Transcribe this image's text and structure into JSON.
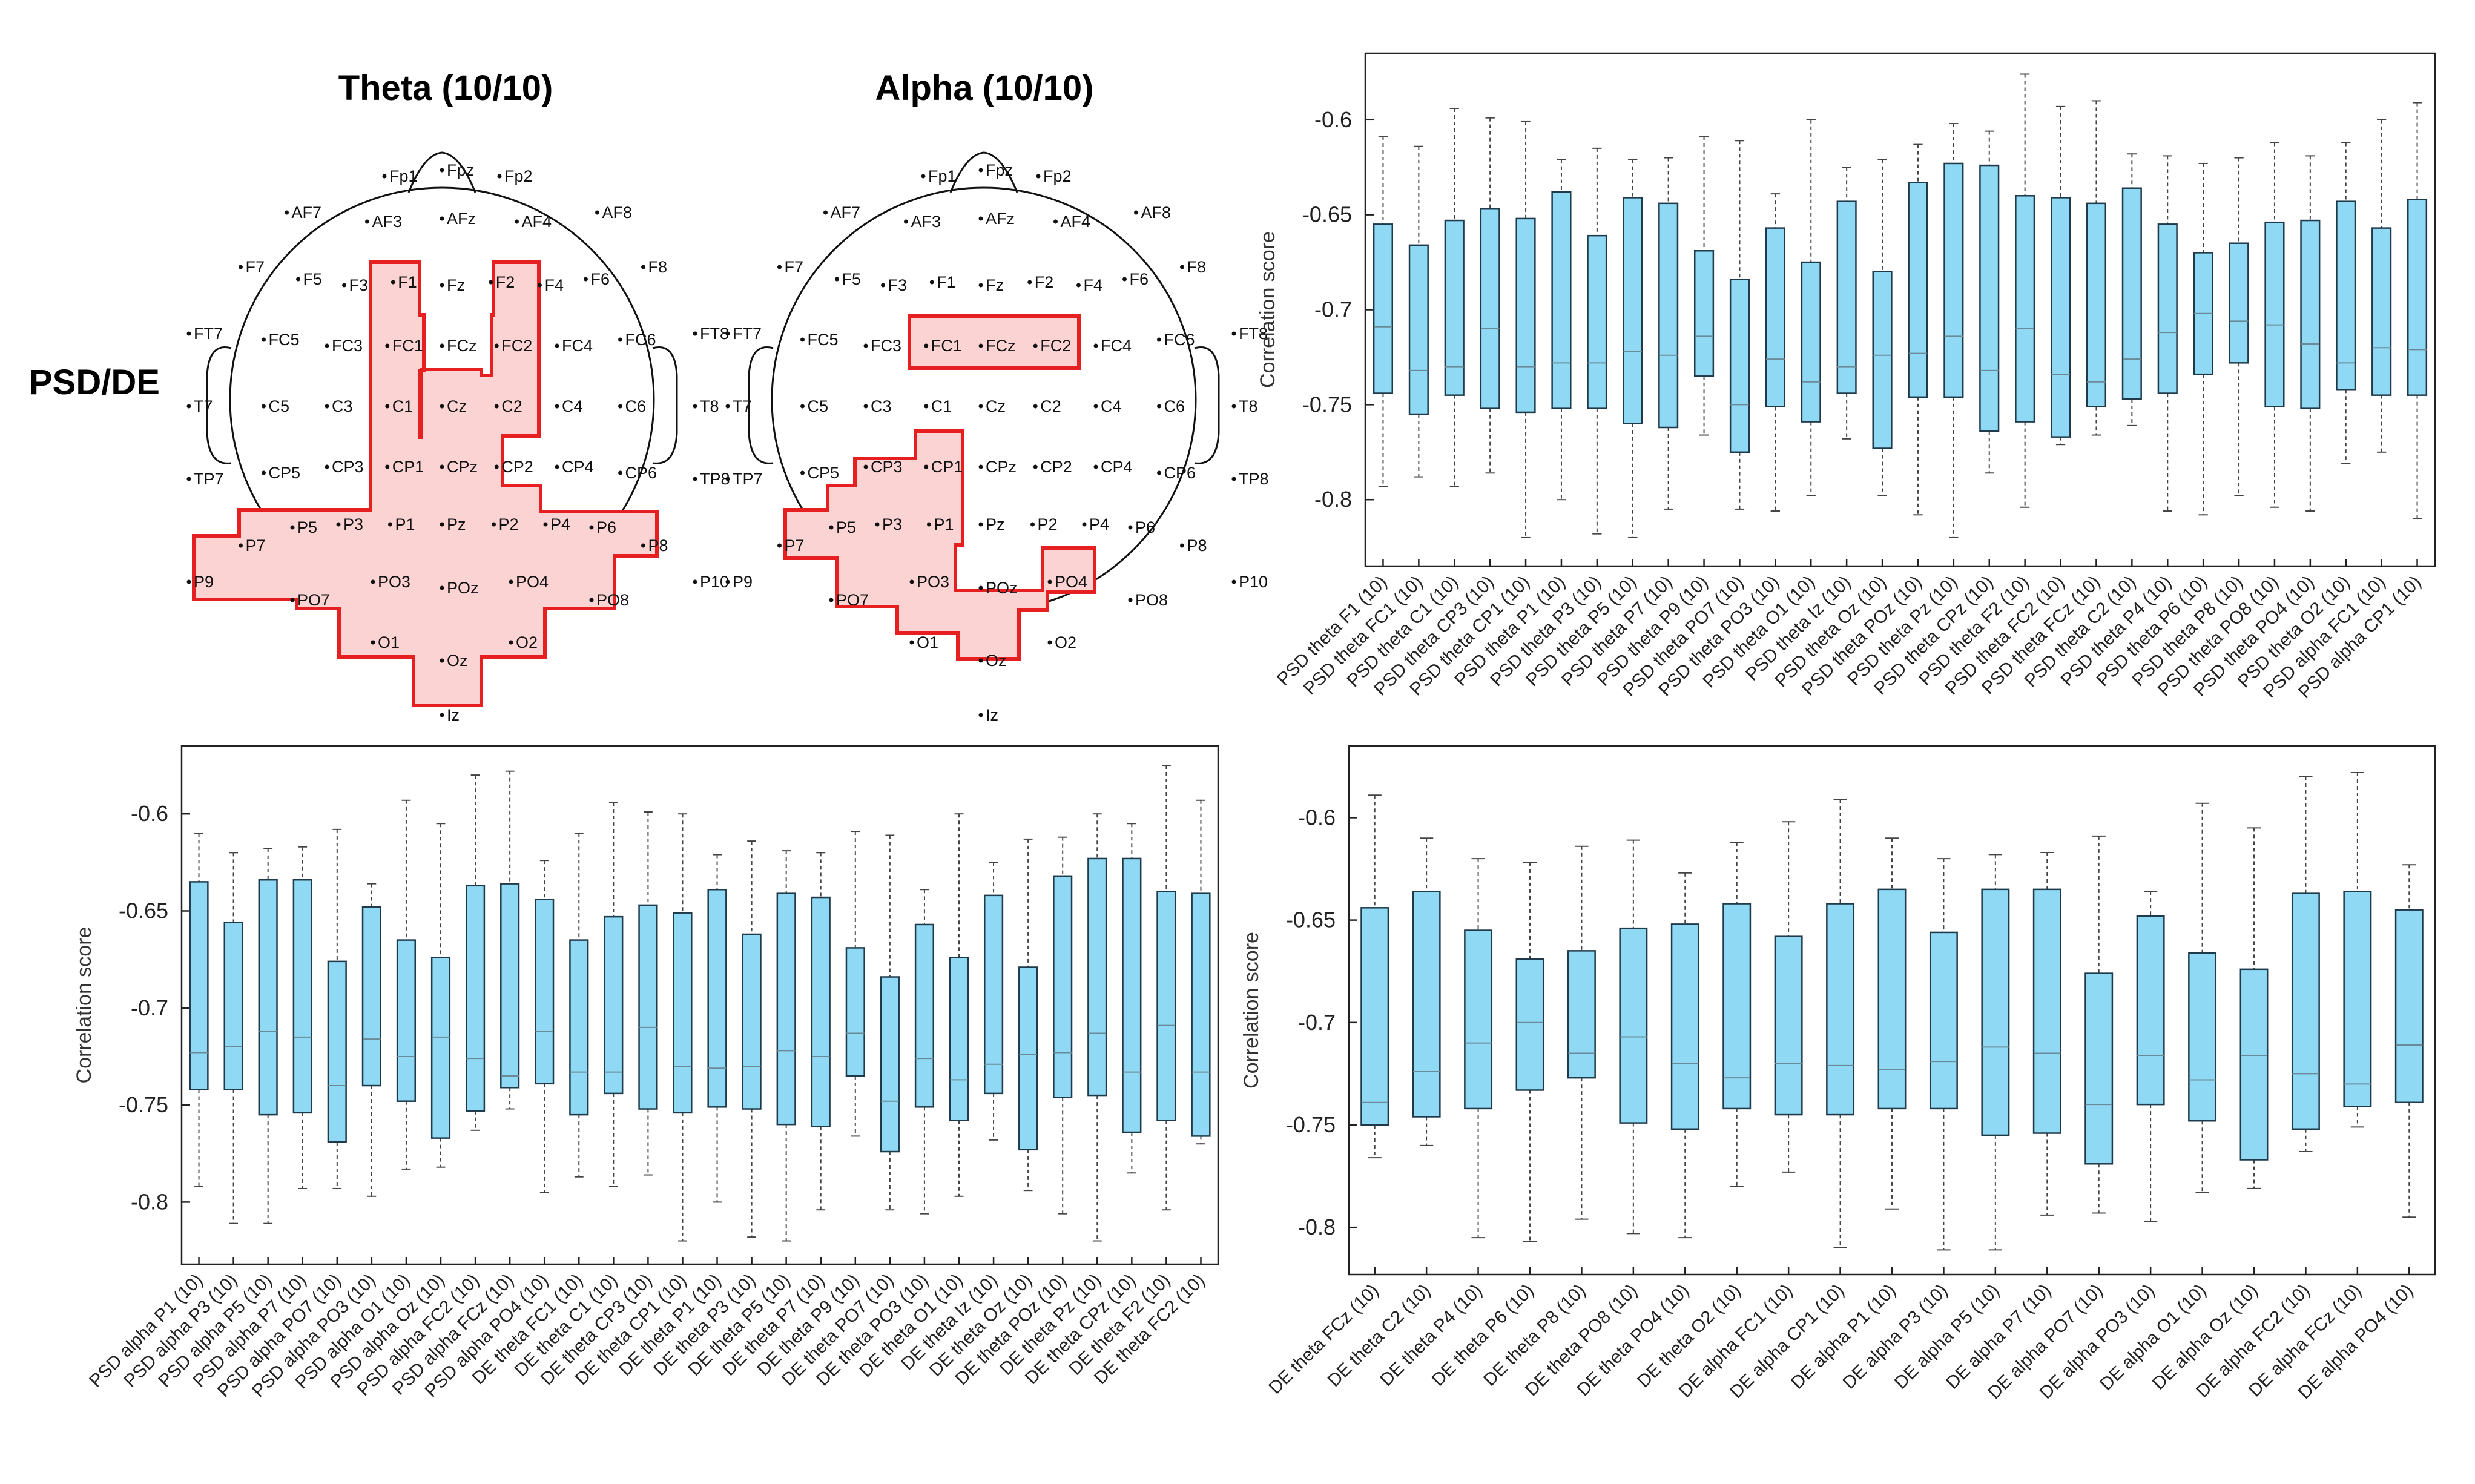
{
  "topomaps": {
    "theta_title": "Theta (10/10)",
    "alpha_title": "Alpha (10/10)",
    "row_label": "PSD/DE",
    "region_color": "#e62020",
    "region_fill": "#fcd3d3",
    "electrodes": [
      {
        "n": "Fpz",
        "c": 0,
        "r": 0
      },
      {
        "n": "Fp1",
        "c": -1,
        "r": 0.1
      },
      {
        "n": "Fp2",
        "c": 1,
        "r": 0.1
      },
      {
        "n": "AF7",
        "c": -2.7,
        "r": 0.7
      },
      {
        "n": "AF3",
        "c": -1.3,
        "r": 0.85
      },
      {
        "n": "AFz",
        "c": 0,
        "r": 0.8
      },
      {
        "n": "AF4",
        "c": 1.3,
        "r": 0.85
      },
      {
        "n": "AF8",
        "c": 2.7,
        "r": 0.7
      },
      {
        "n": "F7",
        "c": -3.5,
        "r": 1.6
      },
      {
        "n": "F5",
        "c": -2.5,
        "r": 1.8
      },
      {
        "n": "F3",
        "c": -1.7,
        "r": 1.9
      },
      {
        "n": "F1",
        "c": -0.85,
        "r": 1.85
      },
      {
        "n": "Fz",
        "c": 0,
        "r": 1.9
      },
      {
        "n": "F2",
        "c": 0.85,
        "r": 1.85
      },
      {
        "n": "F4",
        "c": 1.7,
        "r": 1.9
      },
      {
        "n": "F6",
        "c": 2.5,
        "r": 1.8
      },
      {
        "n": "F8",
        "c": 3.5,
        "r": 1.6
      },
      {
        "n": "FT7",
        "c": -4.4,
        "r": 2.7
      },
      {
        "n": "FC5",
        "c": -3.1,
        "r": 2.8
      },
      {
        "n": "FC3",
        "c": -2.0,
        "r": 2.9
      },
      {
        "n": "FC1",
        "c": -0.95,
        "r": 2.9
      },
      {
        "n": "FCz",
        "c": 0,
        "r": 2.9
      },
      {
        "n": "FC2",
        "c": 0.95,
        "r": 2.9
      },
      {
        "n": "FC4",
        "c": 2.0,
        "r": 2.9
      },
      {
        "n": "FC6",
        "c": 3.1,
        "r": 2.8
      },
      {
        "n": "FT8",
        "c": 4.4,
        "r": 2.7
      },
      {
        "n": "T7",
        "c": -4.4,
        "r": 3.9
      },
      {
        "n": "C5",
        "c": -3.1,
        "r": 3.9
      },
      {
        "n": "C3",
        "c": -2.0,
        "r": 3.9
      },
      {
        "n": "C1",
        "c": -0.95,
        "r": 3.9
      },
      {
        "n": "Cz",
        "c": 0,
        "r": 3.9
      },
      {
        "n": "C2",
        "c": 0.95,
        "r": 3.9
      },
      {
        "n": "C4",
        "c": 2.0,
        "r": 3.9
      },
      {
        "n": "C6",
        "c": 3.1,
        "r": 3.9
      },
      {
        "n": "T8",
        "c": 4.4,
        "r": 3.9
      },
      {
        "n": "TP7",
        "c": -4.4,
        "r": 5.1
      },
      {
        "n": "CP5",
        "c": -3.1,
        "r": 5.0
      },
      {
        "n": "CP3",
        "c": -2.0,
        "r": 4.9
      },
      {
        "n": "CP1",
        "c": -0.95,
        "r": 4.9
      },
      {
        "n": "CPz",
        "c": 0,
        "r": 4.9
      },
      {
        "n": "CP2",
        "c": 0.95,
        "r": 4.9
      },
      {
        "n": "CP4",
        "c": 2.0,
        "r": 4.9
      },
      {
        "n": "CP6",
        "c": 3.1,
        "r": 5.0
      },
      {
        "n": "TP8",
        "c": 4.4,
        "r": 5.1
      },
      {
        "n": "P7",
        "c": -3.5,
        "r": 6.2
      },
      {
        "n": "P5",
        "c": -2.6,
        "r": 5.9
      },
      {
        "n": "P3",
        "c": -1.8,
        "r": 5.85
      },
      {
        "n": "P1",
        "c": -0.9,
        "r": 5.85
      },
      {
        "n": "Pz",
        "c": 0,
        "r": 5.85
      },
      {
        "n": "P2",
        "c": 0.9,
        "r": 5.85
      },
      {
        "n": "P4",
        "c": 1.8,
        "r": 5.85
      },
      {
        "n": "P6",
        "c": 2.6,
        "r": 5.9
      },
      {
        "n": "P8",
        "c": 3.5,
        "r": 6.2
      },
      {
        "n": "P9",
        "c": -4.4,
        "r": 6.8
      },
      {
        "n": "P10",
        "c": 4.4,
        "r": 6.8
      },
      {
        "n": "PO7",
        "c": -2.6,
        "r": 7.1
      },
      {
        "n": "PO3",
        "c": -1.2,
        "r": 6.8
      },
      {
        "n": "POz",
        "c": 0,
        "r": 6.9
      },
      {
        "n": "PO4",
        "c": 1.2,
        "r": 6.8
      },
      {
        "n": "PO8",
        "c": 2.6,
        "r": 7.1
      },
      {
        "n": "O1",
        "c": -1.2,
        "r": 7.8
      },
      {
        "n": "Oz",
        "c": 0,
        "r": 8.1
      },
      {
        "n": "O2",
        "c": 1.2,
        "r": 7.8
      },
      {
        "n": "Iz",
        "c": 0,
        "r": 9.0
      }
    ]
  },
  "chart_data": [
    {
      "type": "box",
      "ylabel": "Correlation score",
      "ylim": [
        -0.835,
        -0.565
      ],
      "yticks": [
        -0.6,
        -0.65,
        -0.7,
        -0.75,
        -0.8
      ],
      "categories": [
        "PSD theta F1 (10)",
        "PSD theta FC1 (10)",
        "PSD theta C1 (10)",
        "PSD theta CP3 (10)",
        "PSD theta CP1 (10)",
        "PSD theta P1 (10)",
        "PSD theta P3 (10)",
        "PSD theta P5 (10)",
        "PSD theta P7 (10)",
        "PSD theta P9 (10)",
        "PSD theta PO7 (10)",
        "PSD theta PO3 (10)",
        "PSD theta O1 (10)",
        "PSD theta Iz (10)",
        "PSD theta Oz (10)",
        "PSD theta POz (10)",
        "PSD theta Pz (10)",
        "PSD theta CPz (10)",
        "PSD theta F2 (10)",
        "PSD theta FC2 (10)",
        "PSD theta FCz (10)",
        "PSD theta C2 (10)",
        "PSD theta P4 (10)",
        "PSD theta P6 (10)",
        "PSD theta P8 (10)",
        "PSD theta PO8 (10)",
        "PSD theta PO4 (10)",
        "PSD theta O2 (10)",
        "PSD alpha FC1 (10)",
        "PSD alpha CP1 (10)"
      ],
      "q1": [
        -0.744,
        -0.755,
        -0.745,
        -0.752,
        -0.754,
        -0.752,
        -0.752,
        -0.76,
        -0.762,
        -0.735,
        -0.775,
        -0.751,
        -0.759,
        -0.744,
        -0.773,
        -0.746,
        -0.746,
        -0.764,
        -0.759,
        -0.767,
        -0.751,
        -0.747,
        -0.744,
        -0.734,
        -0.728,
        -0.751,
        -0.752,
        -0.742,
        -0.745,
        -0.745
      ],
      "median": [
        -0.709,
        -0.732,
        -0.73,
        -0.71,
        -0.73,
        -0.728,
        -0.728,
        -0.722,
        -0.724,
        -0.714,
        -0.75,
        -0.726,
        -0.738,
        -0.73,
        -0.724,
        -0.723,
        -0.714,
        -0.732,
        -0.71,
        -0.734,
        -0.738,
        -0.726,
        -0.712,
        -0.702,
        -0.706,
        -0.708,
        -0.718,
        -0.728,
        -0.72,
        -0.721
      ],
      "q3": [
        -0.655,
        -0.666,
        -0.653,
        -0.647,
        -0.652,
        -0.638,
        -0.661,
        -0.641,
        -0.644,
        -0.669,
        -0.684,
        -0.657,
        -0.675,
        -0.643,
        -0.68,
        -0.633,
        -0.623,
        -0.624,
        -0.64,
        -0.641,
        -0.644,
        -0.636,
        -0.655,
        -0.67,
        -0.665,
        -0.654,
        -0.653,
        -0.643,
        -0.657,
        -0.642
      ],
      "wlo": [
        -0.793,
        -0.788,
        -0.793,
        -0.786,
        -0.82,
        -0.8,
        -0.818,
        -0.82,
        -0.805,
        -0.766,
        -0.805,
        -0.806,
        -0.798,
        -0.768,
        -0.798,
        -0.808,
        -0.82,
        -0.786,
        -0.804,
        -0.771,
        -0.766,
        -0.761,
        -0.806,
        -0.808,
        -0.798,
        -0.804,
        -0.806,
        -0.781,
        -0.775,
        -0.81
      ],
      "whi": [
        -0.609,
        -0.614,
        -0.594,
        -0.599,
        -0.601,
        -0.621,
        -0.615,
        -0.621,
        -0.62,
        -0.609,
        -0.611,
        -0.639,
        -0.6,
        -0.625,
        -0.621,
        -0.613,
        -0.602,
        -0.606,
        -0.576,
        -0.593,
        -0.59,
        -0.618,
        -0.619,
        -0.623,
        -0.62,
        -0.612,
        -0.619,
        -0.612,
        -0.6,
        -0.591
      ]
    },
    {
      "type": "box",
      "ylabel": "Correlation score",
      "ylim": [
        -0.832,
        -0.565
      ],
      "yticks": [
        -0.6,
        -0.65,
        -0.7,
        -0.75,
        -0.8
      ],
      "categories": [
        "PSD alpha P1 (10)",
        "PSD alpha P3 (10)",
        "PSD alpha P5 (10)",
        "PSD alpha P7 (10)",
        "PSD alpha PO7 (10)",
        "PSD alpha PO3 (10)",
        "PSD alpha O1 (10)",
        "PSD alpha Oz (10)",
        "PSD alpha FC2 (10)",
        "PSD alpha FCz (10)",
        "PSD alpha PO4 (10)",
        "DE theta FC1 (10)",
        "DE theta C1 (10)",
        "DE theta CP3 (10)",
        "DE theta CP1 (10)",
        "DE theta P1 (10)",
        "DE theta P3 (10)",
        "DE theta P5 (10)",
        "DE theta P7 (10)",
        "DE theta P9 (10)",
        "DE theta PO7 (10)",
        "DE theta PO3 (10)",
        "DE theta O1 (10)",
        "DE theta Iz (10)",
        "DE theta Oz (10)",
        "DE theta POz (10)",
        "DE theta Pz (10)",
        "DE theta CPz (10)",
        "DE theta F2 (10)",
        "DE theta FC2 (10)"
      ],
      "q1": [
        -0.742,
        -0.742,
        -0.755,
        -0.754,
        -0.769,
        -0.74,
        -0.748,
        -0.767,
        -0.753,
        -0.741,
        -0.739,
        -0.755,
        -0.744,
        -0.752,
        -0.754,
        -0.751,
        -0.752,
        -0.76,
        -0.761,
        -0.735,
        -0.774,
        -0.751,
        -0.758,
        -0.744,
        -0.773,
        -0.746,
        -0.745,
        -0.764,
        -0.758,
        -0.766
      ],
      "median": [
        -0.723,
        -0.72,
        -0.712,
        -0.715,
        -0.74,
        -0.716,
        -0.725,
        -0.715,
        -0.726,
        -0.735,
        -0.712,
        -0.733,
        -0.733,
        -0.71,
        -0.73,
        -0.731,
        -0.73,
        -0.722,
        -0.725,
        -0.713,
        -0.748,
        -0.726,
        -0.737,
        -0.729,
        -0.724,
        -0.723,
        -0.713,
        -0.733,
        -0.709,
        -0.733
      ],
      "q3": [
        -0.635,
        -0.656,
        -0.634,
        -0.634,
        -0.676,
        -0.648,
        -0.665,
        -0.674,
        -0.637,
        -0.636,
        -0.644,
        -0.665,
        -0.653,
        -0.647,
        -0.651,
        -0.639,
        -0.662,
        -0.641,
        -0.643,
        -0.669,
        -0.684,
        -0.657,
        -0.674,
        -0.642,
        -0.679,
        -0.632,
        -0.623,
        -0.623,
        -0.64,
        -0.641
      ],
      "wlo": [
        -0.792,
        -0.811,
        -0.811,
        -0.793,
        -0.793,
        -0.797,
        -0.783,
        -0.782,
        -0.763,
        -0.752,
        -0.795,
        -0.787,
        -0.792,
        -0.786,
        -0.82,
        -0.8,
        -0.818,
        -0.82,
        -0.804,
        -0.766,
        -0.804,
        -0.806,
        -0.797,
        -0.768,
        -0.794,
        -0.806,
        -0.82,
        -0.785,
        -0.804,
        -0.77
      ],
      "whi": [
        -0.61,
        -0.62,
        -0.618,
        -0.617,
        -0.608,
        -0.636,
        -0.593,
        -0.605,
        -0.58,
        -0.578,
        -0.624,
        -0.61,
        -0.594,
        -0.599,
        -0.6,
        -0.621,
        -0.614,
        -0.619,
        -0.62,
        -0.609,
        -0.611,
        -0.639,
        -0.6,
        -0.625,
        -0.613,
        -0.612,
        -0.6,
        -0.605,
        -0.575,
        -0.593
      ]
    },
    {
      "type": "box",
      "ylabel": "Correlation score",
      "ylim": [
        -0.823,
        -0.565
      ],
      "yticks": [
        -0.6,
        -0.65,
        -0.7,
        -0.75,
        -0.8
      ],
      "categories": [
        "DE theta FCz (10)",
        "DE theta C2 (10)",
        "DE theta P4 (10)",
        "DE theta P6 (10)",
        "DE theta P8 (10)",
        "DE theta PO8 (10)",
        "DE theta PO4 (10)",
        "DE theta O2 (10)",
        "DE alpha FC1 (10)",
        "DE alpha CP1 (10)",
        "DE alpha P1 (10)",
        "DE alpha P3 (10)",
        "DE alpha P5 (10)",
        "DE alpha P7 (10)",
        "DE alpha PO7 (10)",
        "DE alpha PO3 (10)",
        "DE alpha O1 (10)",
        "DE alpha Oz (10)",
        "DE alpha FC2 (10)",
        "DE alpha FCz (10)",
        "DE alpha PO4 (10)"
      ],
      "q1": [
        -0.75,
        -0.746,
        -0.742,
        -0.733,
        -0.727,
        -0.749,
        -0.752,
        -0.742,
        -0.745,
        -0.745,
        -0.742,
        -0.742,
        -0.755,
        -0.754,
        -0.769,
        -0.74,
        -0.748,
        -0.767,
        -0.752,
        -0.741,
        -0.739
      ],
      "median": [
        -0.739,
        -0.724,
        -0.71,
        -0.7,
        -0.715,
        -0.707,
        -0.72,
        -0.727,
        -0.72,
        -0.721,
        -0.723,
        -0.719,
        -0.712,
        -0.715,
        -0.74,
        -0.716,
        -0.728,
        -0.716,
        -0.725,
        -0.73,
        -0.711
      ],
      "q3": [
        -0.644,
        -0.636,
        -0.655,
        -0.669,
        -0.665,
        -0.654,
        -0.652,
        -0.642,
        -0.658,
        -0.642,
        -0.635,
        -0.656,
        -0.635,
        -0.635,
        -0.676,
        -0.648,
        -0.666,
        -0.674,
        -0.637,
        -0.636,
        -0.645
      ],
      "wlo": [
        -0.766,
        -0.76,
        -0.805,
        -0.807,
        -0.796,
        -0.803,
        -0.805,
        -0.78,
        -0.773,
        -0.81,
        -0.791,
        -0.811,
        -0.811,
        -0.794,
        -0.793,
        -0.797,
        -0.783,
        -0.781,
        -0.763,
        -0.751,
        -0.795
      ],
      "whi": [
        -0.589,
        -0.61,
        -0.62,
        -0.622,
        -0.614,
        -0.611,
        -0.627,
        -0.612,
        -0.602,
        -0.591,
        -0.61,
        -0.62,
        -0.618,
        -0.617,
        -0.609,
        -0.636,
        -0.593,
        -0.605,
        -0.58,
        -0.578,
        -0.623
      ]
    }
  ]
}
